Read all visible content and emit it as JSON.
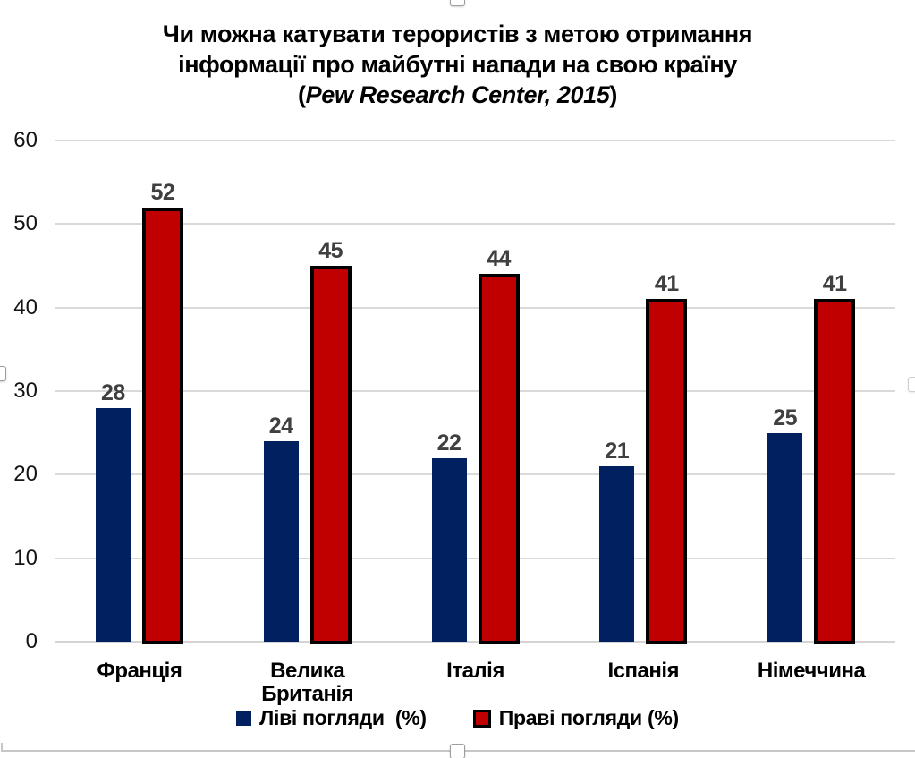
{
  "title": {
    "line1": "Чи можна катувати терористів з метою отримання",
    "line2": "інформації про майбутні напади на свою країну",
    "source_open": "(",
    "source_text": "Pew Research Center, 2015",
    "source_close": ")"
  },
  "chart_data": {
    "type": "bar",
    "title": "Чи можна катувати терористів з метою отримання інформації про майбутні напади на свою країну",
    "subtitle": "(Pew Research Center, 2015)",
    "categories": [
      "Франція",
      "Велика Британія",
      "Італія",
      "Іспанія",
      "Німеччина"
    ],
    "series": [
      {
        "name": "Ліві погляди  (%)",
        "color": "#002060",
        "values": [
          28,
          24,
          22,
          21,
          25
        ]
      },
      {
        "name": "Праві погляди (%)",
        "color": "#C00000",
        "outline": "#000000",
        "values": [
          52,
          45,
          44,
          41,
          41
        ]
      }
    ],
    "y_axis": {
      "min": 0,
      "max": 60,
      "step": 10,
      "ticks": [
        0,
        10,
        20,
        30,
        40,
        50,
        60
      ]
    },
    "grid": true,
    "gridline_color": "#D9D9D9",
    "data_labels": true,
    "data_label_color": "#404040",
    "legend_position": "bottom"
  }
}
